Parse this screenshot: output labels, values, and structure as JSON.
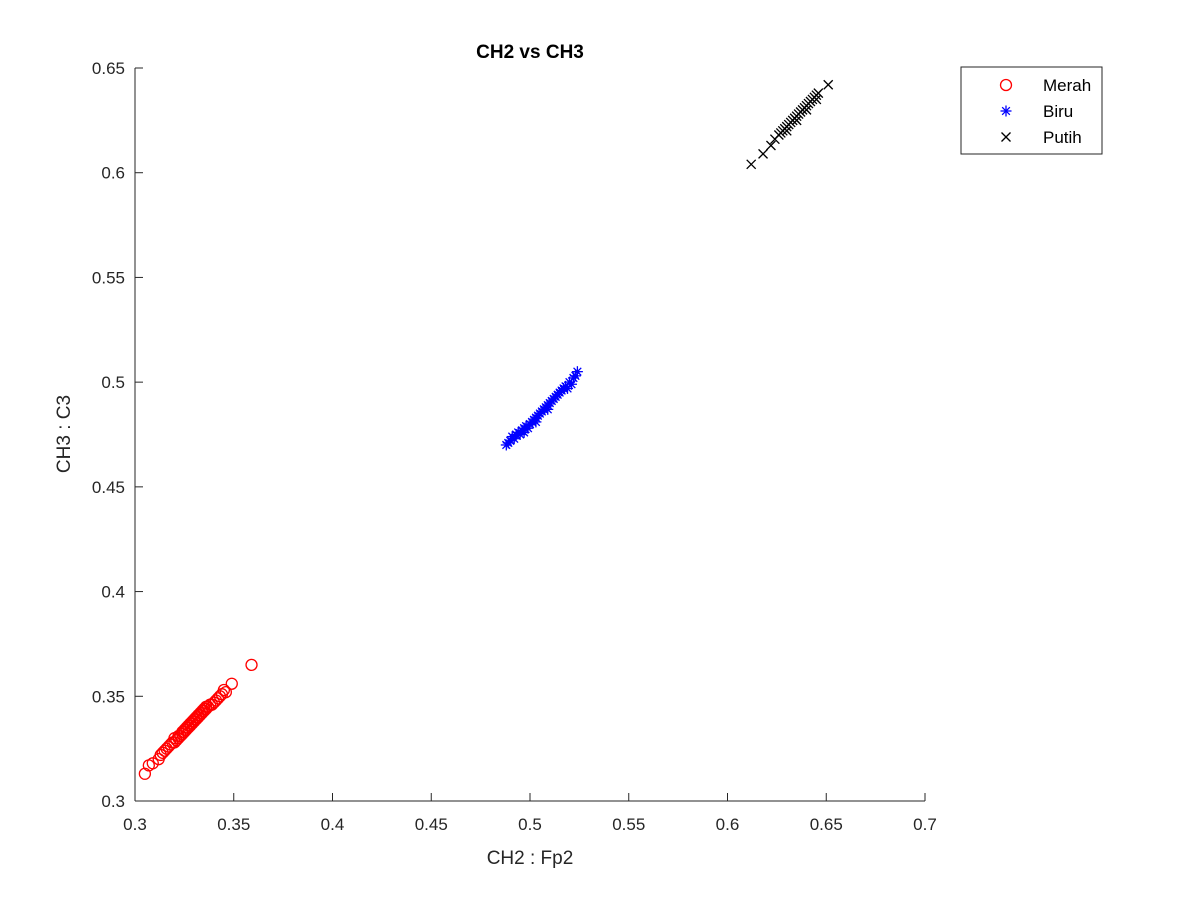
{
  "chart_data": {
    "type": "scatter",
    "title": "CH2 vs CH3",
    "xlabel": "CH2 : Fp2",
    "ylabel": "CH3 : C3",
    "xlim": [
      0.3,
      0.7
    ],
    "ylim": [
      0.3,
      0.65
    ],
    "xticks": [
      "0.3",
      "0.35",
      "0.4",
      "0.45",
      "0.5",
      "0.55",
      "0.6",
      "0.65",
      "0.7"
    ],
    "yticks": [
      "0.3",
      "0.35",
      "0.4",
      "0.45",
      "0.5",
      "0.55",
      "0.6",
      "0.65"
    ],
    "grid": false,
    "legend_position": "outside-top-right",
    "series": [
      {
        "name": "Merah",
        "marker": "circle",
        "color": "#ff0000",
        "points": [
          [
            0.305,
            0.313
          ],
          [
            0.307,
            0.317
          ],
          [
            0.309,
            0.318
          ],
          [
            0.312,
            0.32
          ],
          [
            0.313,
            0.322
          ],
          [
            0.314,
            0.323
          ],
          [
            0.315,
            0.324
          ],
          [
            0.316,
            0.325
          ],
          [
            0.317,
            0.326
          ],
          [
            0.318,
            0.327
          ],
          [
            0.319,
            0.328
          ],
          [
            0.32,
            0.328
          ],
          [
            0.32,
            0.33
          ],
          [
            0.321,
            0.329
          ],
          [
            0.322,
            0.33
          ],
          [
            0.322,
            0.331
          ],
          [
            0.323,
            0.331
          ],
          [
            0.324,
            0.332
          ],
          [
            0.324,
            0.333
          ],
          [
            0.325,
            0.333
          ],
          [
            0.325,
            0.334
          ],
          [
            0.326,
            0.334
          ],
          [
            0.326,
            0.335
          ],
          [
            0.327,
            0.335
          ],
          [
            0.327,
            0.336
          ],
          [
            0.328,
            0.336
          ],
          [
            0.328,
            0.337
          ],
          [
            0.329,
            0.337
          ],
          [
            0.329,
            0.338
          ],
          [
            0.33,
            0.338
          ],
          [
            0.33,
            0.339
          ],
          [
            0.331,
            0.339
          ],
          [
            0.331,
            0.34
          ],
          [
            0.332,
            0.34
          ],
          [
            0.332,
            0.341
          ],
          [
            0.333,
            0.341
          ],
          [
            0.333,
            0.342
          ],
          [
            0.334,
            0.342
          ],
          [
            0.334,
            0.343
          ],
          [
            0.335,
            0.343
          ],
          [
            0.335,
            0.344
          ],
          [
            0.336,
            0.344
          ],
          [
            0.336,
            0.345
          ],
          [
            0.337,
            0.345
          ],
          [
            0.338,
            0.346
          ],
          [
            0.339,
            0.346
          ],
          [
            0.34,
            0.347
          ],
          [
            0.341,
            0.348
          ],
          [
            0.342,
            0.349
          ],
          [
            0.343,
            0.35
          ],
          [
            0.344,
            0.351
          ],
          [
            0.345,
            0.353
          ],
          [
            0.346,
            0.352
          ],
          [
            0.349,
            0.356
          ],
          [
            0.359,
            0.365
          ]
        ]
      },
      {
        "name": "Biru",
        "marker": "asterisk",
        "color": "#0000ff",
        "points": [
          [
            0.488,
            0.47
          ],
          [
            0.489,
            0.471
          ],
          [
            0.49,
            0.472
          ],
          [
            0.491,
            0.474
          ],
          [
            0.492,
            0.473
          ],
          [
            0.493,
            0.475
          ],
          [
            0.494,
            0.476
          ],
          [
            0.495,
            0.475
          ],
          [
            0.496,
            0.477
          ],
          [
            0.497,
            0.478
          ],
          [
            0.498,
            0.479
          ],
          [
            0.499,
            0.478
          ],
          [
            0.5,
            0.48
          ],
          [
            0.501,
            0.481
          ],
          [
            0.502,
            0.482
          ],
          [
            0.503,
            0.483
          ],
          [
            0.504,
            0.484
          ],
          [
            0.505,
            0.485
          ],
          [
            0.506,
            0.486
          ],
          [
            0.507,
            0.487
          ],
          [
            0.508,
            0.488
          ],
          [
            0.509,
            0.489
          ],
          [
            0.51,
            0.49
          ],
          [
            0.511,
            0.491
          ],
          [
            0.512,
            0.492
          ],
          [
            0.513,
            0.493
          ],
          [
            0.514,
            0.494
          ],
          [
            0.515,
            0.495
          ],
          [
            0.516,
            0.496
          ],
          [
            0.517,
            0.497
          ],
          [
            0.518,
            0.498
          ],
          [
            0.519,
            0.497
          ],
          [
            0.52,
            0.5
          ],
          [
            0.521,
            0.499
          ],
          [
            0.522,
            0.502
          ],
          [
            0.523,
            0.503
          ],
          [
            0.524,
            0.505
          ],
          [
            0.497,
            0.476
          ],
          [
            0.503,
            0.481
          ],
          [
            0.509,
            0.487
          ]
        ]
      },
      {
        "name": "Putih",
        "marker": "x",
        "color": "#000000",
        "points": [
          [
            0.612,
            0.604
          ],
          [
            0.618,
            0.609
          ],
          [
            0.622,
            0.613
          ],
          [
            0.624,
            0.616
          ],
          [
            0.626,
            0.618
          ],
          [
            0.627,
            0.619
          ],
          [
            0.628,
            0.62
          ],
          [
            0.629,
            0.621
          ],
          [
            0.63,
            0.622
          ],
          [
            0.631,
            0.623
          ],
          [
            0.632,
            0.624
          ],
          [
            0.633,
            0.625
          ],
          [
            0.634,
            0.626
          ],
          [
            0.635,
            0.627
          ],
          [
            0.636,
            0.628
          ],
          [
            0.637,
            0.629
          ],
          [
            0.638,
            0.63
          ],
          [
            0.639,
            0.631
          ],
          [
            0.64,
            0.632
          ],
          [
            0.641,
            0.633
          ],
          [
            0.642,
            0.634
          ],
          [
            0.643,
            0.635
          ],
          [
            0.644,
            0.636
          ],
          [
            0.645,
            0.637
          ],
          [
            0.646,
            0.638
          ],
          [
            0.651,
            0.642
          ],
          [
            0.63,
            0.62
          ],
          [
            0.635,
            0.625
          ],
          [
            0.64,
            0.63
          ],
          [
            0.645,
            0.635
          ]
        ]
      }
    ]
  }
}
